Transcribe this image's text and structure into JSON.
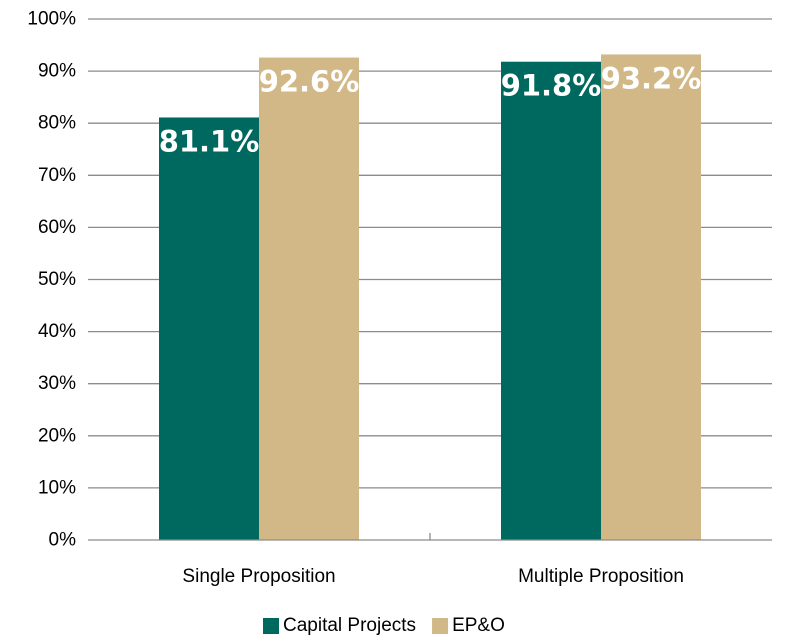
{
  "chart_data": {
    "type": "bar",
    "title": "",
    "xlabel": "",
    "ylabel": "",
    "categories": [
      "Single Proposition",
      "Multiple Proposition"
    ],
    "series": [
      {
        "name": "Capital Projects",
        "color": "#00695F",
        "values": [
          81.1,
          91.8
        ],
        "labels": [
          "81.1%",
          "91.8%"
        ]
      },
      {
        "name": "EP&O",
        "color": "#D2B887",
        "values": [
          92.6,
          93.2
        ],
        "labels": [
          "92.6%",
          "93.2%"
        ]
      }
    ],
    "ylim": [
      0,
      100
    ],
    "yticks": [
      0,
      10,
      20,
      30,
      40,
      50,
      60,
      70,
      80,
      90,
      100
    ],
    "ytick_labels": [
      "0%",
      "10%",
      "20%",
      "30%",
      "40%",
      "50%",
      "60%",
      "70%",
      "80%",
      "90%",
      "100%"
    ],
    "grid": true,
    "gridline_color": "#8C8C8C",
    "legend_position": "bottom"
  }
}
